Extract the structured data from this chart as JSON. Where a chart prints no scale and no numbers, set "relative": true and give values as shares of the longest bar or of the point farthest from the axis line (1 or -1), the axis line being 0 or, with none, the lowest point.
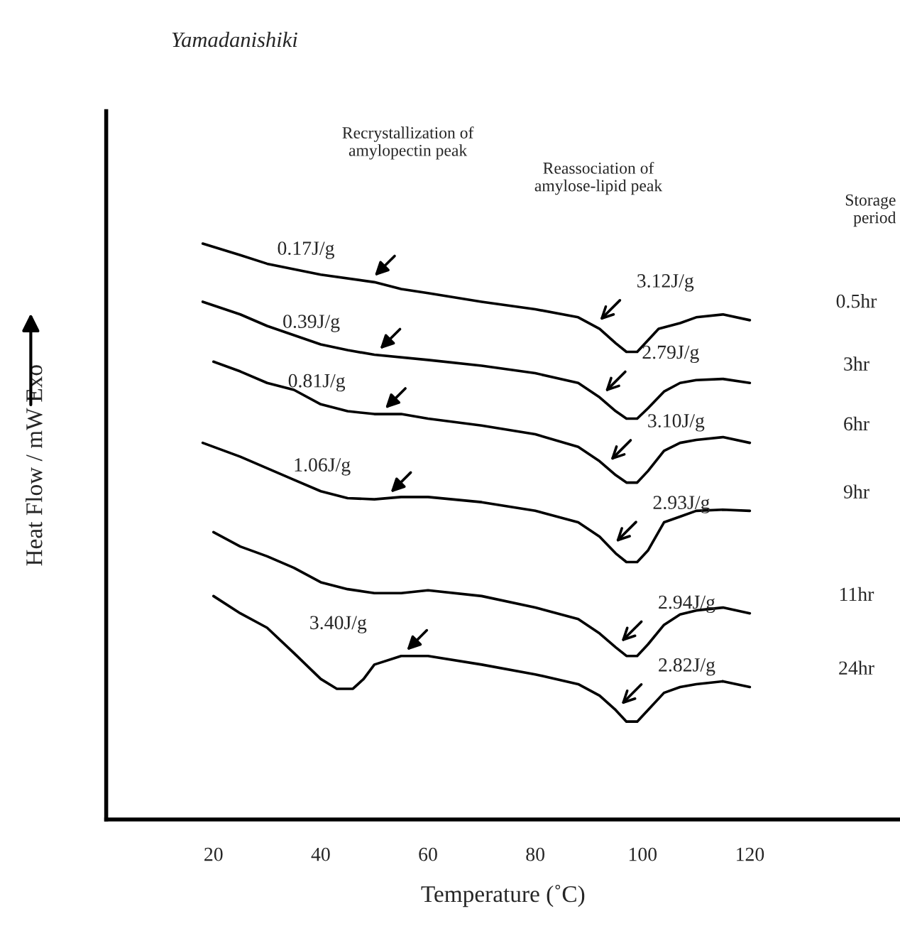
{
  "chart_data": {
    "type": "line",
    "relative": true,
    "title": "Yamadanishiki",
    "xlabel": "Temperature (˚C)",
    "ylabel": "Heat Flow / mW Exo",
    "xlim": [
      0,
      148
    ],
    "xticks": [
      20,
      40,
      60,
      80,
      100,
      120
    ],
    "grid": false,
    "legend": false,
    "marker": "none",
    "line_style": "solid",
    "series": [
      {
        "name": "0.5hr",
        "color": "#000000",
        "x": [
          18,
          25,
          30,
          40,
          50,
          55,
          60,
          70,
          80,
          88,
          92,
          95,
          97,
          99,
          101,
          103,
          107,
          110,
          115,
          120
        ],
        "values": [
          1.0,
          0.98,
          0.965,
          0.946,
          0.933,
          0.921,
          0.914,
          0.899,
          0.886,
          0.872,
          0.852,
          0.827,
          0.812,
          0.812,
          0.832,
          0.852,
          0.862,
          0.872,
          0.877,
          0.867
        ]
      },
      {
        "name": "3hr",
        "color": "#000000",
        "x": [
          18,
          25,
          30,
          40,
          45,
          50,
          60,
          70,
          80,
          88,
          92,
          95,
          97,
          99,
          101,
          104,
          107,
          110,
          115,
          120
        ],
        "values": [
          0.899,
          0.877,
          0.857,
          0.825,
          0.815,
          0.807,
          0.798,
          0.788,
          0.775,
          0.758,
          0.733,
          0.709,
          0.696,
          0.696,
          0.714,
          0.743,
          0.758,
          0.763,
          0.765,
          0.758
        ]
      },
      {
        "name": "6hr",
        "color": "#000000",
        "x": [
          20,
          25,
          30,
          35,
          40,
          45,
          50,
          55,
          60,
          70,
          80,
          88,
          92,
          95,
          97,
          99,
          101,
          104,
          107,
          110,
          115,
          120
        ],
        "values": [
          0.795,
          0.778,
          0.758,
          0.746,
          0.721,
          0.709,
          0.704,
          0.704,
          0.696,
          0.684,
          0.669,
          0.647,
          0.622,
          0.598,
          0.585,
          0.585,
          0.605,
          0.64,
          0.654,
          0.659,
          0.664,
          0.654
        ]
      },
      {
        "name": "9hr",
        "color": "#000000",
        "x": [
          18,
          25,
          30,
          35,
          40,
          45,
          50,
          55,
          60,
          70,
          80,
          88,
          92,
          95,
          97,
          99,
          101,
          104,
          107,
          110,
          115,
          120
        ],
        "values": [
          0.654,
          0.63,
          0.61,
          0.59,
          0.57,
          0.558,
          0.556,
          0.56,
          0.56,
          0.551,
          0.536,
          0.516,
          0.491,
          0.462,
          0.447,
          0.447,
          0.467,
          0.516,
          0.526,
          0.536,
          0.538,
          0.536
        ]
      },
      {
        "name": "11hr",
        "color": "#000000",
        "x": [
          20,
          25,
          30,
          35,
          40,
          45,
          50,
          55,
          60,
          70,
          80,
          88,
          92,
          95,
          97,
          99,
          101,
          104,
          107,
          110,
          115,
          120
        ],
        "values": [
          0.499,
          0.474,
          0.457,
          0.437,
          0.412,
          0.4,
          0.393,
          0.393,
          0.398,
          0.388,
          0.368,
          0.348,
          0.323,
          0.299,
          0.284,
          0.284,
          0.304,
          0.338,
          0.356,
          0.363,
          0.368,
          0.358
        ]
      },
      {
        "name": "24hr",
        "color": "#000000",
        "x": [
          20,
          25,
          30,
          35,
          40,
          43,
          46,
          48,
          50,
          55,
          60,
          70,
          80,
          88,
          92,
          95,
          97,
          99,
          101,
          104,
          107,
          110,
          115,
          120
        ],
        "values": [
          0.388,
          0.358,
          0.333,
          0.289,
          0.244,
          0.227,
          0.227,
          0.244,
          0.269,
          0.284,
          0.284,
          0.269,
          0.252,
          0.235,
          0.215,
          0.19,
          0.17,
          0.17,
          0.19,
          0.22,
          0.23,
          0.235,
          0.24,
          0.23
        ]
      }
    ],
    "annotations": [
      "Recrystallization of\namylopectin peak",
      "Reassociation of\namylose-lipid peak",
      "Storage\nperiod",
      {
        "text": "0.17J/g",
        "x": 49,
        "y": 0.934
      },
      {
        "text": "0.39J/g",
        "x": 50,
        "y": 0.807
      },
      {
        "text": "0.81J/g",
        "x": 51,
        "y": 0.704
      },
      {
        "text": "1.06J/g",
        "x": 52,
        "y": 0.558
      },
      {
        "text": "3.40J/g",
        "x": 55,
        "y": 0.284
      },
      {
        "text": "3.12J/g",
        "x": 91,
        "y": 0.857
      },
      {
        "text": "2.79J/g",
        "x": 92,
        "y": 0.733
      },
      {
        "text": "3.10J/g",
        "x": 93,
        "y": 0.614
      },
      {
        "text": "2.93J/g",
        "x": 94,
        "y": 0.472
      },
      {
        "text": "2.94J/g",
        "x": 95,
        "y": 0.299
      },
      {
        "text": "2.82J/g",
        "x": 95,
        "y": 0.19
      }
    ]
  }
}
